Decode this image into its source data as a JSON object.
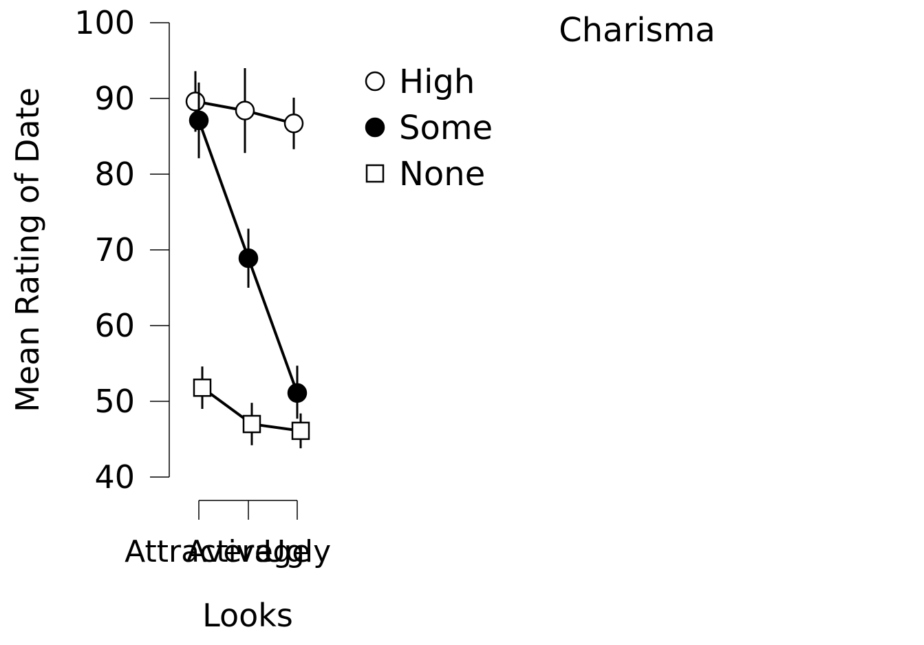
{
  "chart_data": {
    "type": "line",
    "xlabel": "Looks",
    "ylabel": "Mean Rating of Date",
    "categories": [
      "Attractive",
      "Average",
      "Ugly"
    ],
    "ylim": [
      40,
      100
    ],
    "yticks": [
      40,
      50,
      60,
      70,
      80,
      90,
      100
    ],
    "legend": {
      "title": "Charisma",
      "placement": "top-right"
    },
    "series": [
      {
        "name": "High",
        "marker": "open-circle",
        "values": [
          89.6,
          88.4,
          86.7
        ],
        "err_low": [
          85.6,
          82.8,
          83.3
        ],
        "err_high": [
          93.6,
          94.0,
          90.1
        ]
      },
      {
        "name": "Some",
        "marker": "filled-circle",
        "values": [
          87.1,
          68.9,
          51.1
        ],
        "err_low": [
          82.1,
          65.0,
          47.7
        ],
        "err_high": [
          92.1,
          72.8,
          54.7
        ]
      },
      {
        "name": "None",
        "marker": "open-square",
        "values": [
          51.8,
          47.0,
          46.1
        ],
        "err_low": [
          49.0,
          44.2,
          43.8
        ],
        "err_high": [
          54.6,
          49.8,
          48.4
        ]
      }
    ]
  }
}
